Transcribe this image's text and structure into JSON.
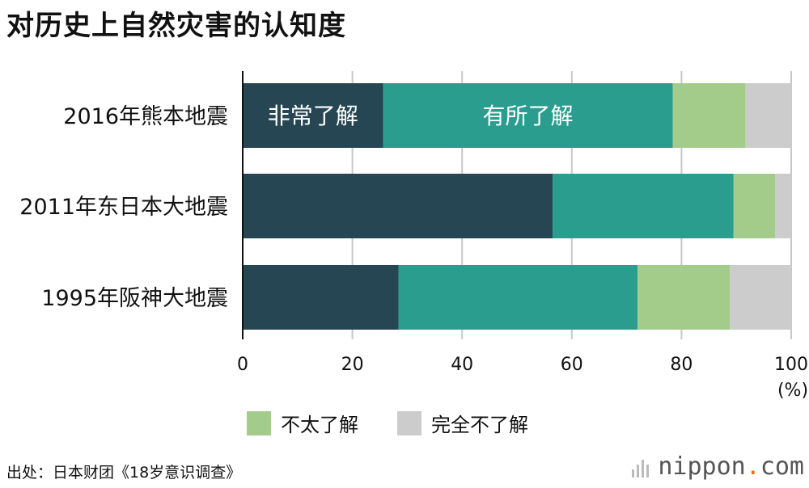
{
  "header": {
    "title": "对历史上自然灾害的认知度"
  },
  "chart_data": {
    "type": "bar",
    "orientation": "horizontal",
    "stacked": true,
    "categories": [
      "2016年熊本地震",
      "2011年东日本大地震",
      "1995年阪神大地震"
    ],
    "series": [
      {
        "name": "非常了解",
        "color": "#264653",
        "values": [
          25.6,
          56.5,
          28.4
        ]
      },
      {
        "name": "有所了解",
        "color": "#2a9d8f",
        "values": [
          52.8,
          33.0,
          43.6
        ]
      },
      {
        "name": "不太了解",
        "color": "#a3cc8a",
        "values": [
          13.3,
          7.6,
          16.8
        ]
      },
      {
        "name": "完全不了解",
        "color": "#cccccc",
        "values": [
          8.3,
          2.9,
          11.2
        ]
      }
    ],
    "xlim": [
      0,
      100
    ],
    "xticks": [
      "0",
      "20",
      "40",
      "60",
      "80",
      "100"
    ],
    "xunit": "(%)",
    "grid": true,
    "legend": "bottom",
    "inline_labels": [
      "非常了解",
      "有所了解"
    ]
  },
  "legend": [
    {
      "label": "不太了解",
      "color": "#a3cc8a"
    },
    {
      "label": "完全不了解",
      "color": "#cccccc"
    }
  ],
  "footer": {
    "source": "出处：日本财团《18岁意识调查》",
    "brand_main": "nippon",
    "brand_dot": ".",
    "brand_suffix": "com"
  }
}
